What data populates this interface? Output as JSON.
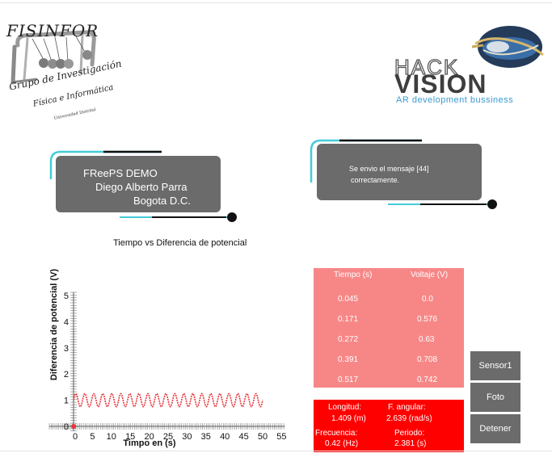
{
  "logos": {
    "left": {
      "name": "FISINFOR",
      "line1": "Grupo de Investigación",
      "line2": "Física e Informática",
      "line3": "Universidad Distrital"
    },
    "right": {
      "name_top": "HACK",
      "name_bottom": "VISION",
      "tagline": "AR development bussiness"
    }
  },
  "info_card": {
    "line1": "FReePS DEMO",
    "line2": "Diego Alberto Parra",
    "line3": "Bogota D.C."
  },
  "message_card": {
    "line1": "Se envio el mensaje [44]",
    "line2": "correctamente."
  },
  "chart_data": {
    "type": "line",
    "title": "Tiempo  vs Diferencia de potencial",
    "xlabel": "Timpo en (s)",
    "ylabel": "Diferencia de potencial (V)",
    "xlim": [
      0,
      55
    ],
    "ylim": [
      0,
      5
    ],
    "xticks": [
      0,
      5,
      10,
      15,
      20,
      25,
      30,
      35,
      40,
      45,
      50,
      55
    ],
    "yticks": [
      0,
      1,
      2,
      3,
      4,
      5
    ],
    "series": [
      {
        "color": "#e8383d",
        "baseline": 1.0,
        "amplitude": 0.25,
        "frequency_hz": 0.42,
        "x_start": 0,
        "x_end": 50
      }
    ]
  },
  "table": {
    "headers": [
      "Tiempo (s)",
      "Voltaje (V)"
    ],
    "rows": [
      [
        "0.045",
        "0.0"
      ],
      [
        "0.171",
        "0.576"
      ],
      [
        "0.272",
        "0.63"
      ],
      [
        "0.391",
        "0.708"
      ],
      [
        "0.517",
        "0.742"
      ]
    ]
  },
  "results": {
    "longitud_label": "Longitud:",
    "longitud_value": "1.409 (m)",
    "angular_label": "F. angular:",
    "angular_value": "2.639 (rad/s)",
    "frecuencia_label": "Frecuencia:",
    "frecuencia_value": "0.42 (Hz)",
    "periodo_label": "Periodo:",
    "periodo_value": "2.381 (s)"
  },
  "buttons": {
    "sensor": "Sensor1",
    "foto": "Foto",
    "detener": "Detener"
  },
  "colors": {
    "card": "#6b6b6b",
    "accent_cyan": "#44ccd8",
    "table_bg": "#f78787",
    "results_bg": "#ff0000",
    "series": "#e8383d"
  }
}
